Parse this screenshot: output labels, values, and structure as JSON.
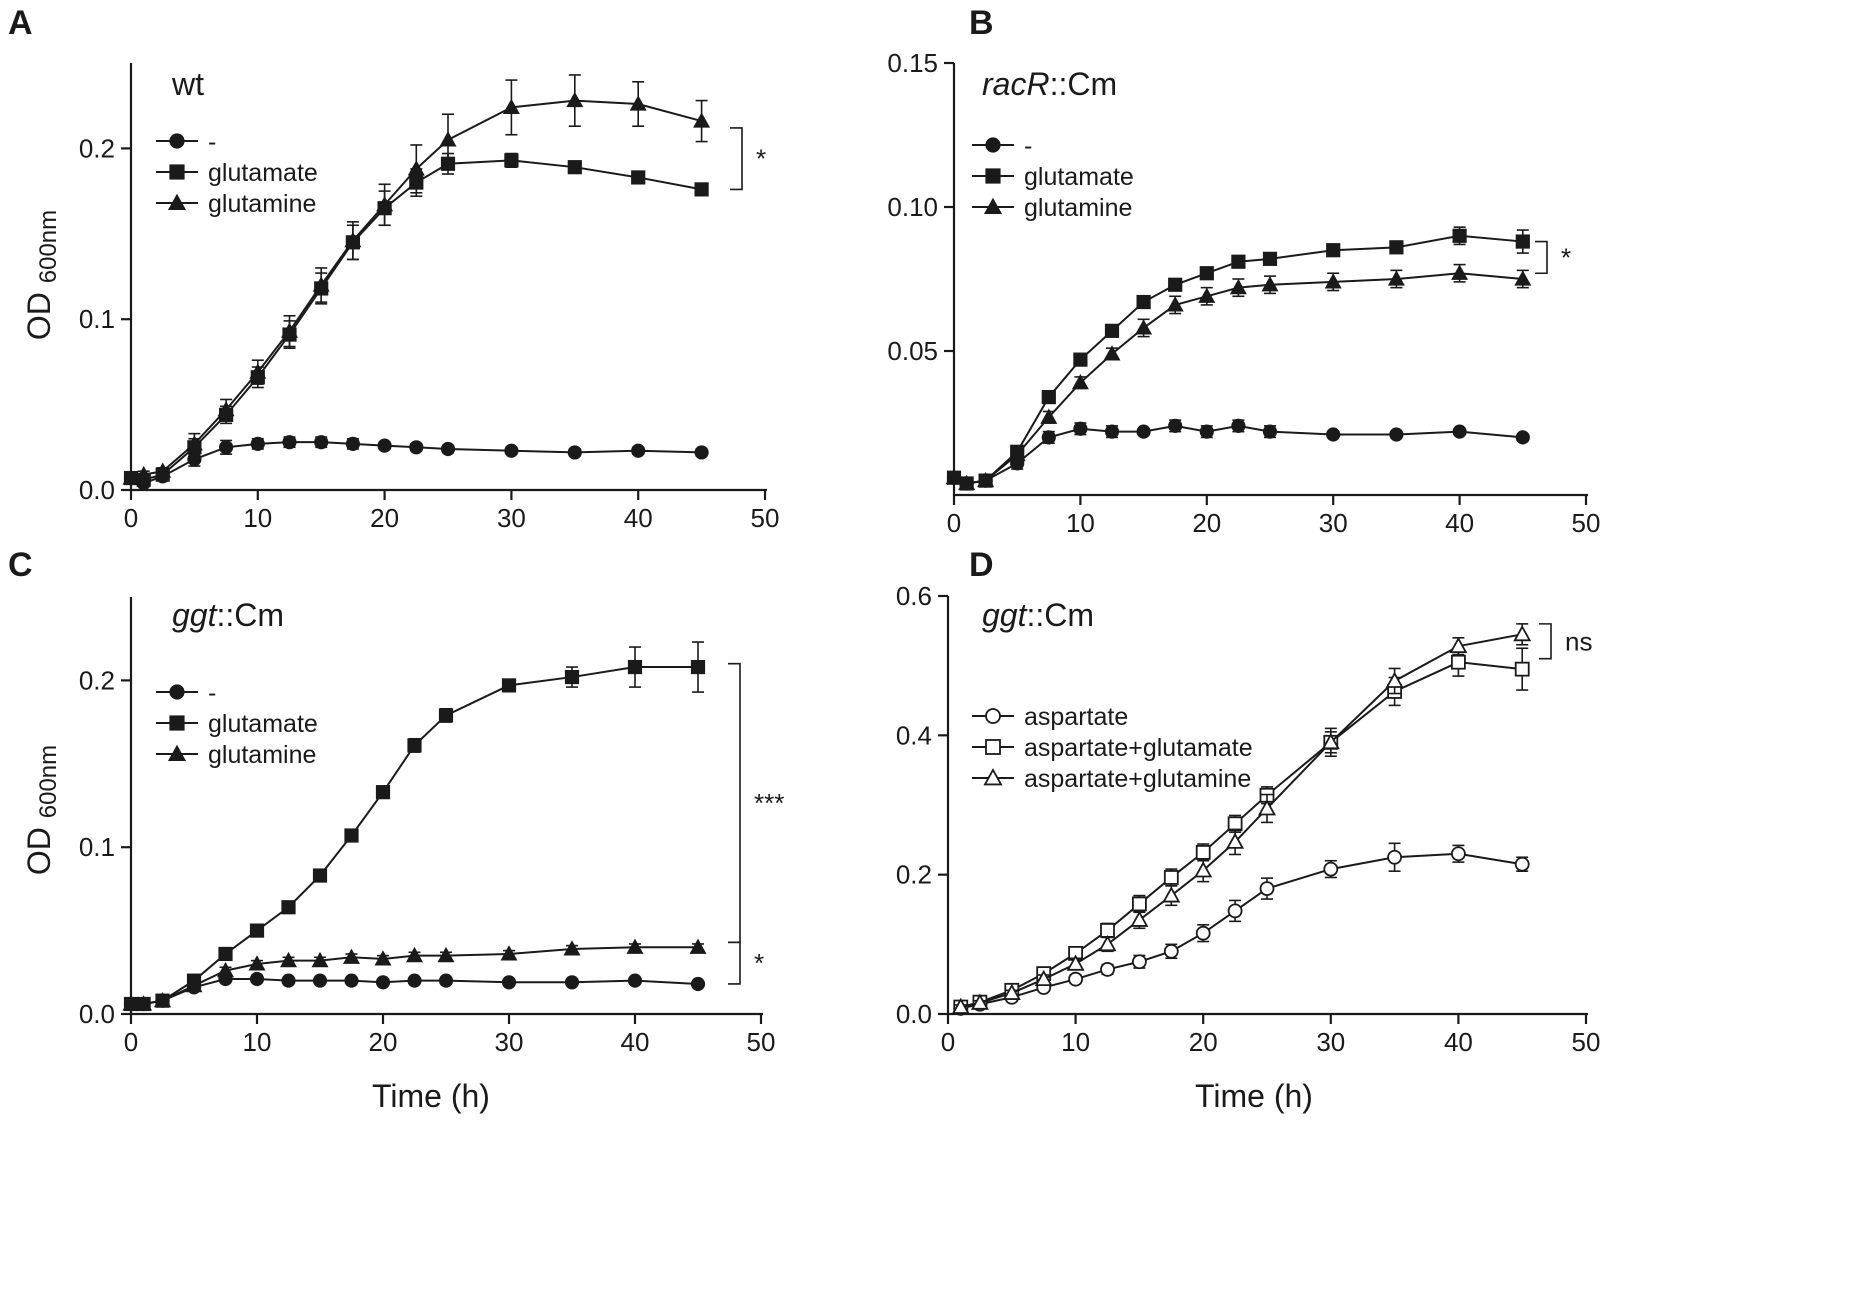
{
  "figure": {
    "background": "#ffffff",
    "ink": "#1a1a1a"
  },
  "chart_data": [
    {
      "panel": "A",
      "type": "line",
      "annotation": "wt",
      "annotation_italic_part": "",
      "ylabel_main": "OD",
      "ylabel_sub": "600nm",
      "xlabel": "",
      "xlim": [
        0,
        50
      ],
      "ylim": [
        0,
        0.25
      ],
      "xticks": [
        0,
        10,
        20,
        30,
        40,
        50
      ],
      "xtick_labels": [
        "0",
        "10",
        "20",
        "30",
        "40",
        "50"
      ],
      "yticks": [
        0,
        0.1,
        0.2
      ],
      "ytick_labels": [
        "0.0",
        "0.1",
        "0.2"
      ],
      "legend": {
        "position": "upper-left"
      },
      "series": [
        {
          "name": "-",
          "marker": "circle",
          "filled": true,
          "x": [
            0,
            1,
            2.5,
            5,
            7.5,
            10,
            12.5,
            15,
            17.5,
            20,
            22.5,
            25,
            30,
            35,
            40,
            45
          ],
          "y": [
            0.007,
            0.004,
            0.008,
            0.018,
            0.025,
            0.027,
            0.028,
            0.028,
            0.027,
            0.026,
            0.025,
            0.024,
            0.023,
            0.022,
            0.023,
            0.022
          ],
          "err": [
            0.002,
            0.002,
            0.002,
            0.004,
            0.004,
            0.003,
            0.003,
            0.003,
            0.003,
            0.002,
            0.002,
            0.002,
            0.002,
            0.002,
            0.002,
            0.002
          ]
        },
        {
          "name": "glutamate",
          "marker": "square",
          "filled": true,
          "x": [
            0,
            1,
            2.5,
            5,
            7.5,
            10,
            12.5,
            15,
            17.5,
            20,
            22.5,
            25,
            30,
            35,
            40,
            45
          ],
          "y": [
            0.007,
            0.006,
            0.009,
            0.025,
            0.044,
            0.066,
            0.091,
            0.118,
            0.145,
            0.165,
            0.18,
            0.191,
            0.193,
            0.189,
            0.183,
            0.176
          ],
          "err": [
            0.002,
            0.002,
            0.002,
            0.005,
            0.005,
            0.006,
            0.008,
            0.009,
            0.01,
            0.01,
            0.008,
            0.006,
            0.004,
            0.003,
            0.003,
            0.003
          ]
        },
        {
          "name": "glutamine",
          "marker": "triangle",
          "filled": true,
          "x": [
            0,
            1,
            2.5,
            5,
            7.5,
            10,
            12.5,
            15,
            17.5,
            20,
            22.5,
            25,
            30,
            35,
            40,
            45
          ],
          "y": [
            0.007,
            0.009,
            0.011,
            0.027,
            0.047,
            0.069,
            0.093,
            0.12,
            0.146,
            0.167,
            0.188,
            0.205,
            0.224,
            0.228,
            0.226,
            0.216
          ],
          "err": [
            0.002,
            0.002,
            0.002,
            0.006,
            0.006,
            0.007,
            0.009,
            0.01,
            0.011,
            0.012,
            0.014,
            0.015,
            0.016,
            0.015,
            0.013,
            0.012
          ]
        }
      ],
      "brackets": [
        {
          "label": "*",
          "y_low": 0.176,
          "y_high": 0.212
        }
      ]
    },
    {
      "panel": "B",
      "type": "line",
      "annotation": "::Cm",
      "annotation_italic_part": "racR",
      "ylabel_main": "",
      "ylabel_sub": "",
      "xlabel": "",
      "xlim": [
        0,
        50
      ],
      "ylim": [
        0,
        0.15
      ],
      "xticks": [
        0,
        10,
        20,
        30,
        40,
        50
      ],
      "xtick_labels": [
        "0",
        "10",
        "20",
        "30",
        "40",
        "50"
      ],
      "yticks": [
        0.05,
        0.1,
        0.15
      ],
      "ytick_labels": [
        "0.05",
        "0.10",
        "0.15"
      ],
      "legend": {
        "position": "upper-left"
      },
      "series": [
        {
          "name": "-",
          "marker": "circle",
          "filled": true,
          "x": [
            0,
            1,
            2.5,
            5,
            7.5,
            10,
            12.5,
            15,
            17.5,
            20,
            22.5,
            25,
            30,
            35,
            40,
            45
          ],
          "y": [
            0.006,
            0.004,
            0.005,
            0.011,
            0.02,
            0.023,
            0.022,
            0.022,
            0.024,
            0.022,
            0.024,
            0.022,
            0.021,
            0.021,
            0.022,
            0.02
          ],
          "err": [
            0.001,
            0.001,
            0.001,
            0.002,
            0.002,
            0.002,
            0.002,
            0.001,
            0.002,
            0.002,
            0.002,
            0.002,
            0.001,
            0.001,
            0.001,
            0.001
          ]
        },
        {
          "name": "glutamate",
          "marker": "square",
          "filled": true,
          "x": [
            0,
            1,
            2.5,
            5,
            7.5,
            10,
            12.5,
            15,
            17.5,
            20,
            22.5,
            25,
            30,
            35,
            40,
            45
          ],
          "y": [
            0.006,
            0.004,
            0.005,
            0.015,
            0.034,
            0.047,
            0.057,
            0.067,
            0.073,
            0.077,
            0.081,
            0.082,
            0.085,
            0.086,
            0.09,
            0.088
          ],
          "err": [
            0.001,
            0.001,
            0.001,
            0.001,
            0.001,
            0.001,
            0.001,
            0.001,
            0.001,
            0.001,
            0.001,
            0.001,
            0.001,
            0.002,
            0.003,
            0.004
          ]
        },
        {
          "name": "glutamine",
          "marker": "triangle",
          "filled": true,
          "x": [
            0,
            1,
            2.5,
            5,
            7.5,
            10,
            12.5,
            15,
            17.5,
            20,
            22.5,
            25,
            30,
            35,
            40,
            45
          ],
          "y": [
            0.006,
            0.004,
            0.005,
            0.014,
            0.027,
            0.039,
            0.049,
            0.058,
            0.066,
            0.069,
            0.072,
            0.073,
            0.074,
            0.075,
            0.077,
            0.075
          ],
          "err": [
            0.001,
            0.001,
            0.001,
            0.001,
            0.002,
            0.002,
            0.002,
            0.003,
            0.003,
            0.003,
            0.003,
            0.003,
            0.003,
            0.003,
            0.003,
            0.003
          ]
        }
      ],
      "brackets": [
        {
          "label": "*",
          "y_low": 0.077,
          "y_high": 0.088
        }
      ]
    },
    {
      "panel": "C",
      "type": "line",
      "annotation": "::Cm",
      "annotation_italic_part": "ggt",
      "ylabel_main": "OD",
      "ylabel_sub": "600nm",
      "xlabel": "Time (h)",
      "xlim": [
        0,
        50
      ],
      "ylim": [
        0,
        0.25
      ],
      "xticks": [
        0,
        10,
        20,
        30,
        40,
        50
      ],
      "xtick_labels": [
        "0",
        "10",
        "20",
        "30",
        "40",
        "50"
      ],
      "yticks": [
        0,
        0.1,
        0.2
      ],
      "ytick_labels": [
        "0.0",
        "0.1",
        "0.2"
      ],
      "legend": {
        "position": "upper-left"
      },
      "series": [
        {
          "name": "-",
          "marker": "circle",
          "filled": true,
          "x": [
            0,
            1,
            2.5,
            5,
            7.5,
            10,
            12.5,
            15,
            17.5,
            20,
            22.5,
            25,
            30,
            35,
            40,
            45
          ],
          "y": [
            0.006,
            0.006,
            0.008,
            0.016,
            0.021,
            0.021,
            0.02,
            0.02,
            0.02,
            0.019,
            0.02,
            0.02,
            0.019,
            0.019,
            0.02,
            0.018
          ],
          "err": [
            0.001,
            0.001,
            0.001,
            0.002,
            0.002,
            0.002,
            0.001,
            0.001,
            0.001,
            0.001,
            0.001,
            0.001,
            0.001,
            0.001,
            0.001,
            0.001
          ]
        },
        {
          "name": "glutamate",
          "marker": "square",
          "filled": true,
          "x": [
            0,
            1,
            2.5,
            5,
            7.5,
            10,
            12.5,
            15,
            17.5,
            20,
            22.5,
            25,
            30,
            35,
            40,
            45
          ],
          "y": [
            0.006,
            0.006,
            0.008,
            0.02,
            0.036,
            0.05,
            0.064,
            0.083,
            0.107,
            0.133,
            0.161,
            0.179,
            0.197,
            0.202,
            0.208,
            0.208
          ],
          "err": [
            0.001,
            0.001,
            0.001,
            0.002,
            0.002,
            0.002,
            0.002,
            0.002,
            0.002,
            0.003,
            0.004,
            0.004,
            0.003,
            0.006,
            0.012,
            0.015
          ]
        },
        {
          "name": "glutamine",
          "marker": "triangle",
          "filled": true,
          "x": [
            0,
            1,
            2.5,
            5,
            7.5,
            10,
            12.5,
            15,
            17.5,
            20,
            22.5,
            25,
            30,
            35,
            40,
            45
          ],
          "y": [
            0.006,
            0.006,
            0.008,
            0.017,
            0.026,
            0.03,
            0.032,
            0.032,
            0.034,
            0.033,
            0.035,
            0.035,
            0.036,
            0.039,
            0.04,
            0.04
          ],
          "err": [
            0.001,
            0.001,
            0.001,
            0.002,
            0.002,
            0.002,
            0.002,
            0.002,
            0.002,
            0.002,
            0.002,
            0.002,
            0.002,
            0.002,
            0.002,
            0.002
          ]
        }
      ],
      "brackets": [
        {
          "label": "***",
          "y_low": 0.043,
          "y_high": 0.21
        },
        {
          "label": "*",
          "y_low": 0.018,
          "y_high": 0.043
        }
      ]
    },
    {
      "panel": "D",
      "type": "line",
      "annotation": "::Cm",
      "annotation_italic_part": "ggt",
      "ylabel_main": "",
      "ylabel_sub": "",
      "xlabel": "Time (h)",
      "xlim": [
        0,
        50
      ],
      "ylim": [
        0,
        0.6
      ],
      "xticks": [
        0,
        10,
        20,
        30,
        40,
        50
      ],
      "xtick_labels": [
        "0",
        "10",
        "20",
        "30",
        "40",
        "50"
      ],
      "yticks": [
        0,
        0.2,
        0.4,
        0.6
      ],
      "ytick_labels": [
        "0.0",
        "0.2",
        "0.4",
        "0.6"
      ],
      "legend": {
        "position": "middle-left"
      },
      "series": [
        {
          "name": "aspartate",
          "marker": "circle",
          "filled": false,
          "x": [
            1,
            2.5,
            5,
            7.5,
            10,
            12.5,
            15,
            17.5,
            20,
            22.5,
            25,
            30,
            35,
            40,
            45
          ],
          "y": [
            0.008,
            0.014,
            0.024,
            0.038,
            0.05,
            0.064,
            0.075,
            0.09,
            0.116,
            0.148,
            0.18,
            0.208,
            0.225,
            0.23,
            0.215
          ],
          "err": [
            0.003,
            0.003,
            0.004,
            0.005,
            0.006,
            0.007,
            0.009,
            0.01,
            0.012,
            0.015,
            0.015,
            0.012,
            0.02,
            0.012,
            0.01
          ]
        },
        {
          "name": "aspartate+glutamate",
          "marker": "square",
          "filled": false,
          "x": [
            1,
            2.5,
            5,
            7.5,
            10,
            12.5,
            15,
            17.5,
            20,
            22.5,
            25,
            30,
            35,
            40,
            45
          ],
          "y": [
            0.01,
            0.017,
            0.034,
            0.058,
            0.087,
            0.12,
            0.158,
            0.196,
            0.232,
            0.273,
            0.314,
            0.39,
            0.463,
            0.505,
            0.495
          ],
          "err": [
            0.003,
            0.003,
            0.004,
            0.006,
            0.008,
            0.01,
            0.012,
            0.012,
            0.012,
            0.012,
            0.012,
            0.015,
            0.02,
            0.02,
            0.03
          ]
        },
        {
          "name": "aspartate+glutamine",
          "marker": "triangle",
          "filled": false,
          "x": [
            1,
            2.5,
            5,
            7.5,
            10,
            12.5,
            15,
            17.5,
            20,
            22.5,
            25,
            30,
            35,
            40,
            45
          ],
          "y": [
            0.01,
            0.016,
            0.03,
            0.05,
            0.072,
            0.1,
            0.135,
            0.17,
            0.206,
            0.247,
            0.295,
            0.39,
            0.478,
            0.528,
            0.545
          ],
          "err": [
            0.003,
            0.003,
            0.004,
            0.006,
            0.008,
            0.01,
            0.012,
            0.014,
            0.016,
            0.018,
            0.02,
            0.02,
            0.018,
            0.012,
            0.015
          ]
        }
      ],
      "brackets": [
        {
          "label": "ns",
          "y_low": 0.51,
          "y_high": 0.56
        }
      ]
    }
  ]
}
